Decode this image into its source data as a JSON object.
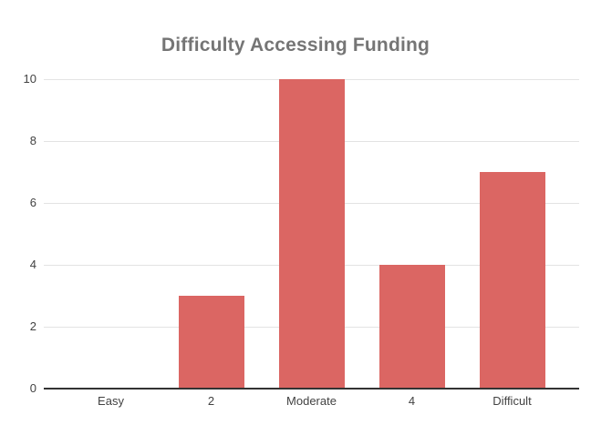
{
  "chart_data": {
    "type": "bar",
    "title": "Difficulty Accessing Funding",
    "categories": [
      "Easy",
      "2",
      "Moderate",
      "4",
      "Difficult"
    ],
    "values": [
      0,
      3,
      10,
      4,
      7
    ],
    "xlabel": "",
    "ylabel": "",
    "ylim": [
      0,
      10
    ],
    "yticks": [
      0,
      2,
      4,
      6,
      8,
      10
    ],
    "grid": true,
    "legend_position": "none",
    "colors": {
      "bar": "#DB6663",
      "title": "#757575",
      "tick_label": "#424242",
      "gridline": "#E3E3E3",
      "axis_line": "#333333",
      "background": "#FFFFFF"
    }
  }
}
